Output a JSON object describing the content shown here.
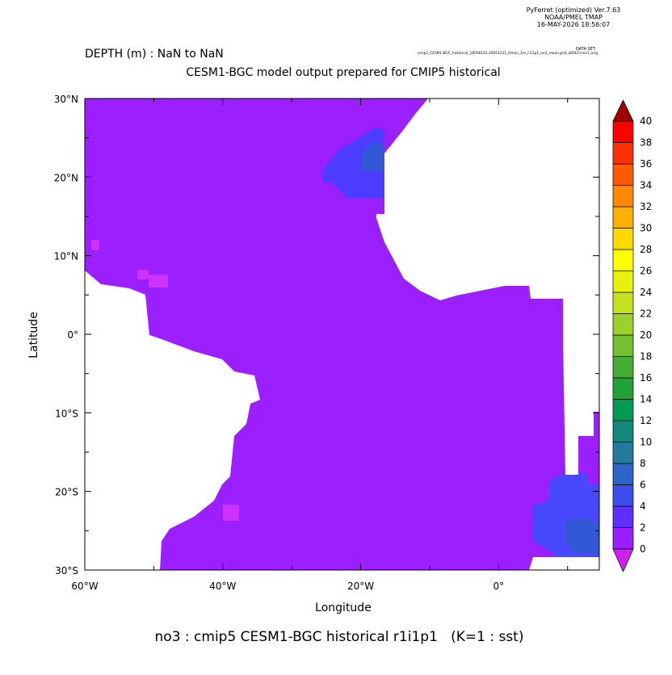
{
  "header": {
    "software": [
      "PyFerret (optimized) Ver.7.63",
      "NOAA/PMEL TMAP",
      "16-MAY-2026 18:56:07"
    ],
    "depth": "DEPTH (m) : NaN to NaN",
    "dataset_label": "DATA SET:",
    "dataset": "cmip5_CESM1-BGC_historical_18500101-20051231_Omon_1m_r1i1p1_no3_mean.grid_at0025-lev1_orig",
    "subtitle": "CESM1-BGC model output prepared for CMIP5 historical"
  },
  "map": {
    "y_axis_label": "Latitude",
    "x_axis_label": "Longitude",
    "yticks": [
      {
        "value": 30,
        "label": "30°N"
      },
      {
        "value": 20,
        "label": "20°N"
      },
      {
        "value": 10,
        "label": "10°N"
      },
      {
        "value": 0,
        "label": "0°"
      },
      {
        "value": -10,
        "label": "10°S"
      },
      {
        "value": -20,
        "label": "20°S"
      },
      {
        "value": -30,
        "label": "30°S"
      }
    ],
    "xticks": [
      {
        "value": -60,
        "label": "60°W"
      },
      {
        "value": -40,
        "label": "40°W"
      },
      {
        "value": -20,
        "label": "20°W"
      },
      {
        "value": 0,
        "label": "0°"
      }
    ],
    "xlim": [
      -60,
      14.6
    ],
    "ylim": [
      -30,
      30
    ]
  },
  "colorbar": {
    "levels": [
      0,
      2,
      4,
      6,
      8,
      10,
      12,
      14,
      16,
      18,
      20,
      22,
      24,
      26,
      28,
      30,
      32,
      34,
      36,
      38,
      40
    ],
    "colors": [
      "#9b1fff",
      "#5f2fff",
      "#3d4dee",
      "#2e63c8",
      "#227a9e",
      "#12877a",
      "#009a52",
      "#22a03a",
      "#45ad32",
      "#74c030",
      "#9cd02a",
      "#c4e020",
      "#e8f010",
      "#ffff00",
      "#ffd800",
      "#ffb000",
      "#ff8800",
      "#ff5a00",
      "#ff3000",
      "#ff0000"
    ],
    "over_color": "#a00000",
    "under_color": "#d020f0"
  },
  "footer": "no3 : cmip5 CESM1-BGC historical r1i1p1   (K=1 : sst)"
}
